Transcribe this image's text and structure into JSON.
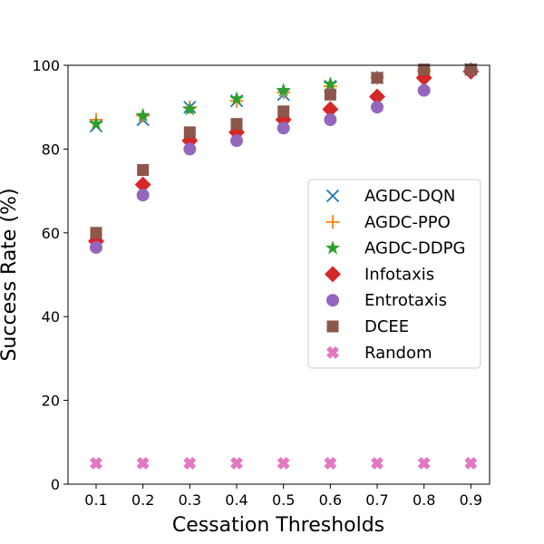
{
  "chart_data": {
    "type": "scatter",
    "title": "",
    "xlabel": "Cessation Thresholds",
    "ylabel": "Success Rate (%)",
    "x": [
      0.1,
      0.2,
      0.3,
      0.4,
      0.5,
      0.6,
      0.7,
      0.8,
      0.9
    ],
    "x_tick_labels": [
      "0.1",
      "0.2",
      "0.3",
      "0.4",
      "0.5",
      "0.6",
      "0.7",
      "0.8",
      "0.9"
    ],
    "xlim": [
      0.04,
      0.94
    ],
    "ylim": [
      0,
      100
    ],
    "y_ticks": [
      0,
      20,
      40,
      60,
      80,
      100
    ],
    "legend_position": "center-right",
    "series": [
      {
        "name": "AGDC-DQN",
        "marker": "x",
        "color": "#1f77b4",
        "values": [
          85.5,
          87.0,
          90.0,
          91.5,
          93.0,
          95.0,
          97.0,
          98.5,
          99.0
        ]
      },
      {
        "name": "AGDC-PPO",
        "marker": "plus",
        "color": "#ff7f0e",
        "values": [
          87.0,
          88.0,
          90.0,
          91.5,
          93.5,
          95.0,
          97.0,
          98.5,
          99.0
        ]
      },
      {
        "name": "AGDC-DDPG",
        "marker": "star",
        "color": "#2ca02c",
        "values": [
          86.0,
          88.0,
          89.5,
          92.0,
          94.0,
          95.5,
          97.0,
          98.5,
          99.0
        ]
      },
      {
        "name": "Infotaxis",
        "marker": "diamond",
        "color": "#d62728",
        "values": [
          58.0,
          71.5,
          82.0,
          84.0,
          87.0,
          89.5,
          92.5,
          97.0,
          98.5
        ]
      },
      {
        "name": "Entrotaxis",
        "marker": "circle",
        "color": "#9467bd",
        "values": [
          56.5,
          69.0,
          80.0,
          82.0,
          85.0,
          87.0,
          90.0,
          94.0,
          99.0
        ]
      },
      {
        "name": "DCEE",
        "marker": "square",
        "color": "#8c564b",
        "values": [
          60.0,
          75.0,
          84.0,
          86.0,
          89.0,
          93.0,
          97.0,
          99.0,
          99.0
        ]
      },
      {
        "name": "Random",
        "marker": "bold-x",
        "color": "#e377c2",
        "values": [
          5,
          5,
          5,
          5,
          5,
          5,
          5,
          5,
          5
        ]
      }
    ]
  }
}
